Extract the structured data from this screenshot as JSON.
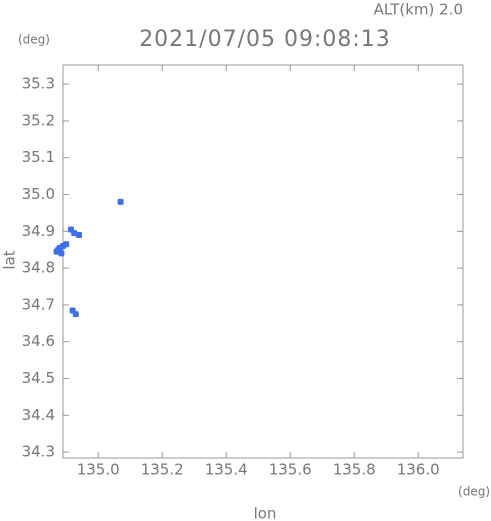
{
  "chart_data": {
    "type": "scatter",
    "title": "2021/07/05 09:08:13",
    "subtitle": "ALT(km) 2.0",
    "y_unit": "(deg)",
    "x_unit": "(deg)",
    "x_label": "lon",
    "y_label": "lat",
    "x": [
      135.07,
      134.915,
      134.925,
      134.94,
      134.88,
      134.89,
      134.87,
      134.9,
      134.885,
      134.875,
      134.92,
      134.93
    ],
    "values": [
      34.98,
      34.905,
      34.895,
      34.89,
      34.855,
      34.86,
      34.845,
      34.865,
      34.84,
      34.85,
      34.685,
      34.675
    ],
    "color": "#3c6fe8",
    "xlim": [
      134.89,
      136.14
    ],
    "ylim": [
      34.284,
      35.352
    ],
    "xticks": [
      {
        "value": 135.0,
        "label": "135.0"
      },
      135.2,
      135.4,
      135.6,
      135.8,
      {
        "value": 136.0,
        "label": "136.0"
      }
    ],
    "yticks": [
      34.3,
      34.4,
      34.5,
      34.6,
      34.7,
      34.8,
      34.9,
      {
        "value": 35.0,
        "label": "35.0"
      },
      35.1,
      35.2,
      35.3
    ]
  }
}
